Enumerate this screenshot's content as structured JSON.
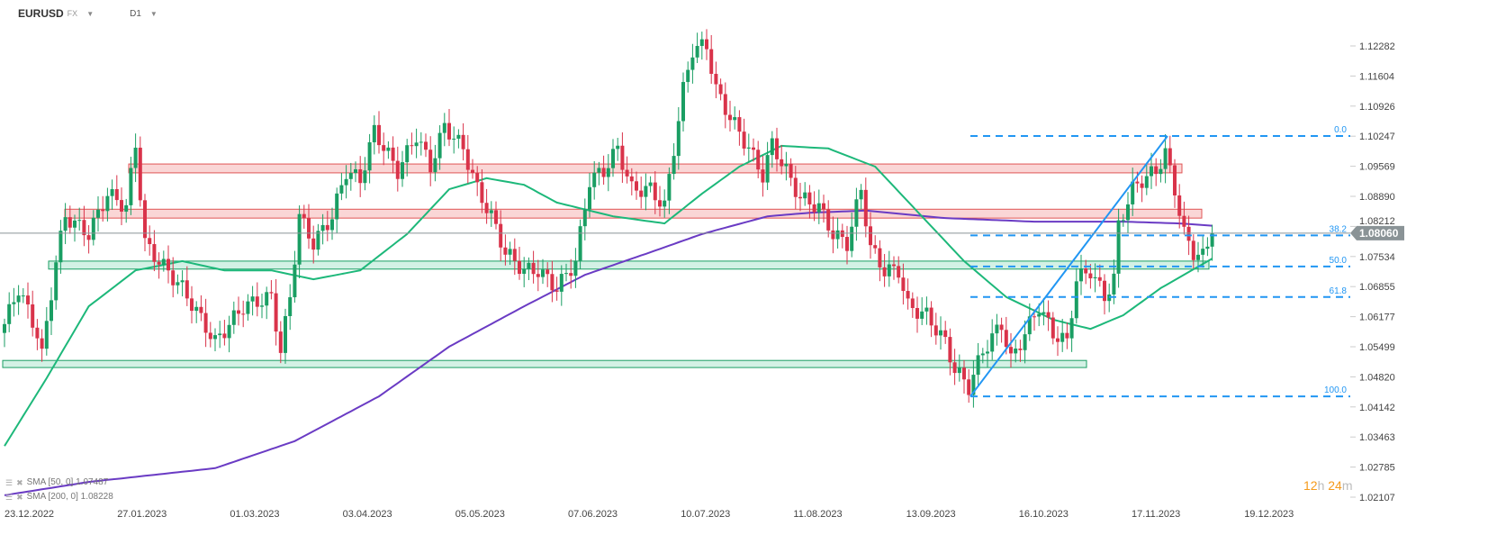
{
  "header": {
    "symbol": "EURUSD",
    "market": "FX",
    "timeframe": "D1"
  },
  "legend": [
    {
      "label": "SMA [50, 0] 1.07487",
      "color": "#1db87a"
    },
    {
      "label": "SMA [200, 0] 1.08228",
      "color": "#6a3bc4"
    }
  ],
  "timer": {
    "hours": "12",
    "h": "h",
    "minutes": "24",
    "m": "m"
  },
  "current_price": "1.08060",
  "colors": {
    "up": "#1a9e63",
    "down": "#d9334a",
    "fib": "#2196f3",
    "sma50": "#1db87a",
    "sma200": "#6a3bc4",
    "price_label_bg": "#8a9396"
  },
  "chart_data": {
    "type": "candlestick",
    "title": "EURUSD",
    "x_ticks": [
      "23.12.2022",
      "27.01.2023",
      "01.03.2023",
      "03.04.2023",
      "05.05.2023",
      "07.06.2023",
      "10.07.2023",
      "11.08.2023",
      "13.09.2023",
      "16.10.2023",
      "17.11.2023",
      "19.12.2023"
    ],
    "y_ticks": [
      "1.12282",
      "1.11604",
      "1.10926",
      "1.10247",
      "1.09569",
      "1.08890",
      "1.08212",
      "1.07534",
      "1.06855",
      "1.06177",
      "1.05499",
      "1.04820",
      "1.04142",
      "1.03463",
      "1.02785",
      "1.02107"
    ],
    "ylim": [
      1.02107,
      1.12282
    ],
    "close_path_day_price": [
      [
        0,
        1.0601
      ],
      [
        3,
        1.0682
      ],
      [
        7,
        1.058
      ],
      [
        8,
        1.053
      ],
      [
        11,
        1.0743
      ],
      [
        13,
        1.0844
      ],
      [
        18,
        1.0804
      ],
      [
        22,
        1.0895
      ],
      [
        26,
        1.0865
      ],
      [
        28,
        1.1007
      ],
      [
        30,
        1.0783
      ],
      [
        33,
        1.0743
      ],
      [
        38,
        1.0682
      ],
      [
        45,
        1.056
      ],
      [
        51,
        1.0641
      ],
      [
        57,
        1.0662
      ],
      [
        59,
        1.054
      ],
      [
        61,
        1.0662
      ],
      [
        63,
        1.0844
      ],
      [
        66,
        1.0783
      ],
      [
        70,
        1.0844
      ],
      [
        73,
        1.0946
      ],
      [
        76,
        1.0926
      ],
      [
        79,
        1.1037
      ],
      [
        84,
        1.0946
      ],
      [
        88,
        1.1027
      ],
      [
        91,
        1.0956
      ],
      [
        94,
        1.1047
      ],
      [
        98,
        1.0997
      ],
      [
        101,
        1.0905
      ],
      [
        104,
        1.0844
      ],
      [
        107,
        1.0763
      ],
      [
        111,
        1.0722
      ],
      [
        114,
        1.0722
      ],
      [
        118,
        1.0682
      ],
      [
        122,
        1.0743
      ],
      [
        125,
        1.0926
      ],
      [
        128,
        1.0946
      ],
      [
        131,
        1.0997
      ],
      [
        134,
        1.0905
      ],
      [
        138,
        1.0905
      ],
      [
        141,
        1.0865
      ],
      [
        143,
        1.0997
      ],
      [
        145,
        1.1129
      ],
      [
        147,
        1.122
      ],
      [
        150,
        1.123
      ],
      [
        152,
        1.1129
      ],
      [
        155,
        1.1068
      ],
      [
        159,
        1.0997
      ],
      [
        162,
        1.0936
      ],
      [
        164,
        1.1007
      ],
      [
        167,
        1.0946
      ],
      [
        170,
        1.0885
      ],
      [
        174,
        1.0865
      ],
      [
        177,
        1.0804
      ],
      [
        180,
        1.0783
      ],
      [
        183,
        1.0905
      ],
      [
        185,
        1.0773
      ],
      [
        188,
        1.0722
      ],
      [
        191,
        1.0722
      ],
      [
        193,
        1.0641
      ],
      [
        197,
        1.0621
      ],
      [
        201,
        1.056
      ],
      [
        203,
        1.0499
      ],
      [
        206,
        1.0459
      ],
      [
        209,
        1.054
      ],
      [
        213,
        1.0601
      ],
      [
        215,
        1.0519
      ],
      [
        218,
        1.058
      ],
      [
        221,
        1.0641
      ],
      [
        224,
        1.058
      ],
      [
        227,
        1.056
      ],
      [
        229,
        1.0702
      ],
      [
        232,
        1.0722
      ],
      [
        235,
        1.0662
      ],
      [
        237,
        1.0702
      ],
      [
        238,
        1.0824
      ],
      [
        241,
        1.0905
      ],
      [
        243,
        1.0926
      ],
      [
        246,
        1.0946
      ],
      [
        248,
        1.0987
      ],
      [
        250,
        1.0905
      ],
      [
        252,
        1.0804
      ],
      [
        254,
        1.0763
      ],
      [
        256,
        1.0753
      ],
      [
        258,
        1.0806
      ]
    ],
    "sma50_day_price": [
      [
        0,
        1.0326
      ],
      [
        9,
        1.0479
      ],
      [
        18,
        1.0641
      ],
      [
        28,
        1.0722
      ],
      [
        38,
        1.0743
      ],
      [
        47,
        1.0722
      ],
      [
        57,
        1.0722
      ],
      [
        66,
        1.0702
      ],
      [
        76,
        1.0722
      ],
      [
        86,
        1.0804
      ],
      [
        95,
        1.0905
      ],
      [
        103,
        1.093
      ],
      [
        111,
        1.0915
      ],
      [
        118,
        1.0875
      ],
      [
        130,
        1.0844
      ],
      [
        141,
        1.0828
      ],
      [
        149,
        1.0895
      ],
      [
        157,
        1.0956
      ],
      [
        166,
        1.1003
      ],
      [
        176,
        1.0997
      ],
      [
        186,
        1.0956
      ],
      [
        195,
        1.0855
      ],
      [
        205,
        1.0743
      ],
      [
        214,
        1.0662
      ],
      [
        224,
        1.0611
      ],
      [
        232,
        1.059
      ],
      [
        239,
        1.0621
      ],
      [
        247,
        1.0682
      ],
      [
        258,
        1.07487
      ]
    ],
    "sma200_day_price": [
      [
        0,
        1.0215
      ],
      [
        18,
        1.0245
      ],
      [
        45,
        1.0276
      ],
      [
        62,
        1.0337
      ],
      [
        80,
        1.0438
      ],
      [
        95,
        1.055
      ],
      [
        111,
        1.0641
      ],
      [
        124,
        1.0712
      ],
      [
        138,
        1.0763
      ],
      [
        149,
        1.0804
      ],
      [
        163,
        1.0844
      ],
      [
        172,
        1.0852
      ],
      [
        184,
        1.0857
      ],
      [
        201,
        1.084
      ],
      [
        220,
        1.0832
      ],
      [
        239,
        1.0832
      ],
      [
        251,
        1.0828
      ],
      [
        258,
        1.08228
      ]
    ],
    "resistance_zones": [
      [
        1.0942,
        1.0962
      ],
      [
        1.084,
        1.086
      ]
    ],
    "support_zones": [
      [
        1.0725,
        1.0743
      ],
      [
        1.0503,
        1.0519
      ]
    ],
    "fibonacci": {
      "from_price": 1.0438,
      "to_price": 1.1025,
      "levels": [
        {
          "label": "0.0",
          "price": 1.1025
        },
        {
          "label": "38.2",
          "price": 1.0801
        },
        {
          "label": "50.0",
          "price": 1.0731
        },
        {
          "label": "61.8",
          "price": 1.0662
        },
        {
          "label": "100.0",
          "price": 1.0438
        }
      ]
    }
  }
}
